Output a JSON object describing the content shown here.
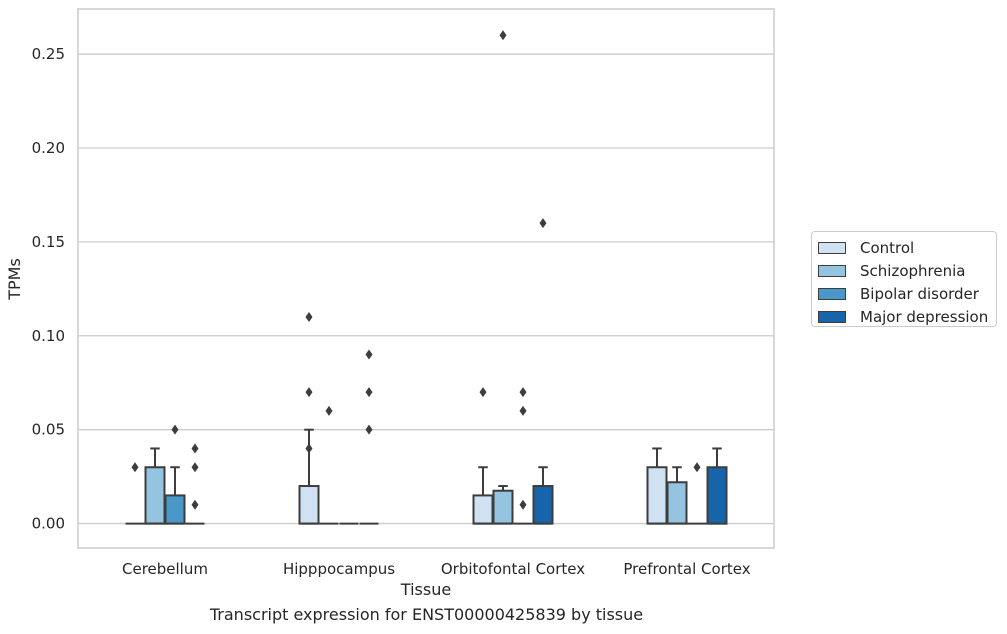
{
  "caption": "Transcript expression for ENST00000425839 by tissue",
  "legend": {
    "items": [
      {
        "label": "Control",
        "color": "#d0e1f2"
      },
      {
        "label": "Schizophrenia",
        "color": "#94c4df"
      },
      {
        "label": "Bipolar disorder",
        "color": "#4a98c9"
      },
      {
        "label": "Major depression",
        "color": "#1764ab"
      }
    ]
  },
  "chart_data": {
    "type": "box",
    "title": "",
    "xlabel": "Tissue",
    "ylabel": "TPMs",
    "ylim": [
      -0.013,
      0.274
    ],
    "yticks": [
      0.0,
      0.05,
      0.1,
      0.15,
      0.2,
      0.25
    ],
    "ytick_labels": [
      "0.00",
      "0.05",
      "0.10",
      "0.15",
      "0.20",
      "0.25"
    ],
    "grid": "horizontal",
    "legend_position": "right",
    "categories": [
      "Cerebellum",
      "Hipppocampus",
      "Orbitofontal Cortex",
      "Prefrontal Cortex"
    ],
    "series": [
      {
        "name": "Control",
        "color": "#d0e1f2",
        "boxes": [
          {
            "q1": 0.0,
            "median": 0.0,
            "q3": 0.0,
            "whisker_low": 0.0,
            "whisker_high": 0.0,
            "outliers": [
              0.03
            ]
          },
          {
            "q1": 0.0,
            "median": 0.0,
            "q3": 0.02,
            "whisker_low": 0.0,
            "whisker_high": 0.05,
            "outliers": [
              0.11,
              0.07,
              0.04
            ]
          },
          {
            "q1": 0.0,
            "median": 0.0,
            "q3": 0.015,
            "whisker_low": 0.0,
            "whisker_high": 0.03,
            "outliers": [
              0.07
            ]
          },
          {
            "q1": 0.0,
            "median": 0.0,
            "q3": 0.03,
            "whisker_low": 0.0,
            "whisker_high": 0.04,
            "outliers": []
          }
        ]
      },
      {
        "name": "Schizophrenia",
        "color": "#94c4df",
        "boxes": [
          {
            "q1": 0.0,
            "median": 0.0,
            "q3": 0.03,
            "whisker_low": 0.0,
            "whisker_high": 0.04,
            "outliers": []
          },
          {
            "q1": 0.0,
            "median": 0.0,
            "q3": 0.0,
            "whisker_low": 0.0,
            "whisker_high": 0.0,
            "outliers": [
              0.06
            ]
          },
          {
            "q1": 0.0,
            "median": 0.0,
            "q3": 0.0175,
            "whisker_low": 0.0,
            "whisker_high": 0.02,
            "outliers": [
              0.26
            ]
          },
          {
            "q1": 0.0,
            "median": 0.0,
            "q3": 0.022,
            "whisker_low": 0.0,
            "whisker_high": 0.03,
            "outliers": []
          }
        ]
      },
      {
        "name": "Bipolar disorder",
        "color": "#4a98c9",
        "boxes": [
          {
            "q1": 0.0,
            "median": 0.0,
            "q3": 0.015,
            "whisker_low": 0.0,
            "whisker_high": 0.03,
            "outliers": [
              0.05
            ]
          },
          {
            "q1": 0.0,
            "median": 0.0,
            "q3": 0.0,
            "whisker_low": 0.0,
            "whisker_high": 0.0,
            "outliers": []
          },
          {
            "q1": 0.0,
            "median": 0.0,
            "q3": 0.0,
            "whisker_low": 0.0,
            "whisker_high": 0.0,
            "outliers": [
              0.07,
              0.06,
              0.01
            ]
          },
          {
            "q1": 0.0,
            "median": 0.0,
            "q3": 0.0,
            "whisker_low": 0.0,
            "whisker_high": 0.0,
            "outliers": [
              0.03
            ]
          }
        ]
      },
      {
        "name": "Major depression",
        "color": "#1764ab",
        "boxes": [
          {
            "q1": 0.0,
            "median": 0.0,
            "q3": 0.0,
            "whisker_low": 0.0,
            "whisker_high": 0.0,
            "outliers": [
              0.04,
              0.03,
              0.01
            ]
          },
          {
            "q1": 0.0,
            "median": 0.0,
            "q3": 0.0,
            "whisker_low": 0.0,
            "whisker_high": 0.0,
            "outliers": [
              0.09,
              0.07,
              0.05
            ]
          },
          {
            "q1": 0.0,
            "median": 0.0,
            "q3": 0.02,
            "whisker_low": 0.0,
            "whisker_high": 0.03,
            "outliers": [
              0.16
            ]
          },
          {
            "q1": 0.0,
            "median": 0.0,
            "q3": 0.03,
            "whisker_low": 0.0,
            "whisker_high": 0.04,
            "outliers": []
          }
        ]
      }
    ]
  }
}
